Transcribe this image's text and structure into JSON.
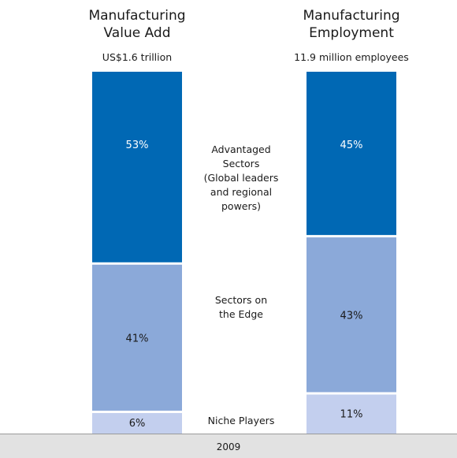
{
  "chart_data": {
    "type": "bar",
    "stacked": true,
    "percent_stacked": true,
    "categories": [
      {
        "title_lines": [
          "Manufacturing",
          "Value Add"
        ],
        "subtitle": "US$1.6 trillion"
      },
      {
        "title_lines": [
          "Manufacturing",
          "Employment"
        ],
        "subtitle": "11.9 million employees"
      }
    ],
    "series": [
      {
        "name_lines": [
          "Advantaged",
          "Sectors",
          "(Global leaders",
          "and regional",
          "powers)"
        ],
        "values": [
          53,
          45
        ],
        "labels": [
          "53%",
          "45%"
        ],
        "color": "#0068b4",
        "label_color": "#ffffff"
      },
      {
        "name_lines": [
          "Sectors on",
          "the Edge"
        ],
        "values": [
          41,
          43
        ],
        "labels": [
          "41%",
          "43%"
        ],
        "color": "#8ba9d9",
        "label_color": "#1a1a1a"
      },
      {
        "name_lines": [
          "Niche Players"
        ],
        "values": [
          6,
          11
        ],
        "labels": [
          "6%",
          "11%"
        ],
        "color": "#c3cfee",
        "label_color": "#1a1a1a"
      }
    ],
    "footer_label": "2009",
    "colors": {
      "footer_band": "#e2e2e2",
      "footer_border": "#9a9a9a",
      "divider": "#ffffff"
    }
  }
}
